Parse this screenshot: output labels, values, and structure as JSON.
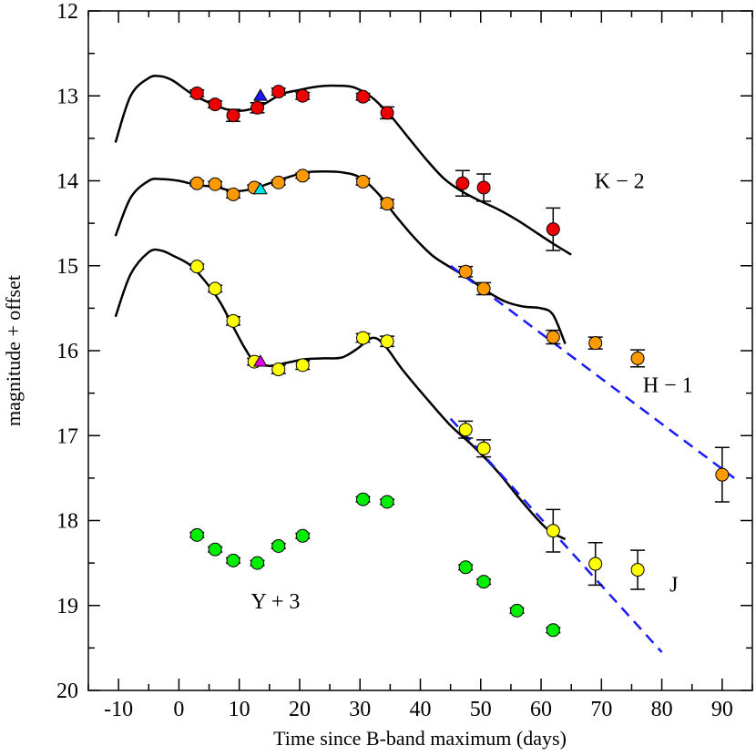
{
  "chart_data": {
    "type": "scatter",
    "xlabel": "Time since B-band maximum (days)",
    "ylabel": "magnitude + offset",
    "xlim": [
      -15,
      95
    ],
    "ylim": [
      12,
      20
    ],
    "y_inverted": true,
    "x_ticks": [
      -10,
      0,
      10,
      20,
      30,
      40,
      50,
      60,
      70,
      80,
      90
    ],
    "y_ticks": [
      12,
      13,
      14,
      15,
      16,
      17,
      18,
      19,
      20
    ],
    "band_labels": [
      {
        "text": "K − 2",
        "x": 73,
        "y": 14.0
      },
      {
        "text": "H − 1",
        "x": 81,
        "y": 16.4
      },
      {
        "text": "J",
        "x": 82,
        "y": 18.75
      },
      {
        "text": "Y + 3",
        "x": 16,
        "y": 18.95
      }
    ],
    "series": [
      {
        "name": "K − 2",
        "color": "#ee0000",
        "points": [
          [
            3,
            12.97,
            0.04
          ],
          [
            6,
            13.1,
            0.04
          ],
          [
            9,
            13.23,
            0.07
          ],
          [
            13,
            13.14,
            0.06
          ],
          [
            16.5,
            12.95,
            0.04
          ],
          [
            20.5,
            13.0,
            0.04
          ],
          [
            30.5,
            13.01,
            0.04
          ],
          [
            34.5,
            13.2,
            0.07
          ],
          [
            47,
            14.03,
            0.15
          ],
          [
            50.5,
            14.08,
            0.16
          ],
          [
            62,
            14.57,
            0.25
          ]
        ],
        "triangle": [
          13.5,
          13.0
        ],
        "triangle_color": "#1a1aff"
      },
      {
        "name": "H − 1",
        "color": "#ff9900",
        "points": [
          [
            3,
            14.03,
            0.03
          ],
          [
            6,
            14.04,
            0.03
          ],
          [
            9,
            14.16,
            0.04
          ],
          [
            12.5,
            14.08,
            0.03
          ],
          [
            16.5,
            14.02,
            0.03
          ],
          [
            20.5,
            13.94,
            0.03
          ],
          [
            30.5,
            14.01,
            0.04
          ],
          [
            34.5,
            14.27,
            0.05
          ],
          [
            47.5,
            15.07,
            0.06
          ],
          [
            50.5,
            15.27,
            0.07
          ],
          [
            62,
            15.84,
            0.08
          ],
          [
            69,
            15.91,
            0.07
          ],
          [
            76,
            16.09,
            0.1
          ],
          [
            90,
            17.46,
            0.32
          ]
        ],
        "triangle": [
          13.5,
          14.1
        ],
        "triangle_color": "#00e5e5"
      },
      {
        "name": "J",
        "color": "#ffff00",
        "points": [
          [
            3,
            15.01,
            0.03
          ],
          [
            6,
            15.27,
            0.04
          ],
          [
            9,
            15.65,
            0.05
          ],
          [
            12.5,
            16.13,
            0.04
          ],
          [
            16.5,
            16.22,
            0.05
          ],
          [
            20.5,
            16.17,
            0.05
          ],
          [
            30.5,
            15.85,
            0.05
          ],
          [
            34.5,
            15.89,
            0.06
          ],
          [
            47.5,
            16.93,
            0.1
          ],
          [
            50.5,
            17.15,
            0.1
          ],
          [
            62,
            18.12,
            0.25
          ],
          [
            69,
            18.51,
            0.25
          ],
          [
            76,
            18.58,
            0.23
          ]
        ],
        "triangle": [
          13.5,
          16.13
        ],
        "triangle_color": "#e600e6"
      },
      {
        "name": "Y + 3",
        "color": "#00ee00",
        "points": [
          [
            3,
            18.17,
            0.03
          ],
          [
            6,
            18.34,
            0.03
          ],
          [
            9,
            18.47,
            0.03
          ],
          [
            13,
            18.5,
            0.03
          ],
          [
            16.5,
            18.3,
            0.03
          ],
          [
            20.5,
            18.18,
            0.03
          ],
          [
            30.5,
            17.75,
            0.03
          ],
          [
            34.5,
            17.78,
            0.03
          ],
          [
            47.5,
            18.55,
            0.03
          ],
          [
            50.5,
            18.72,
            0.03
          ],
          [
            56,
            19.06,
            0.03
          ],
          [
            62,
            19.29,
            0.03
          ]
        ]
      }
    ],
    "curves": [
      {
        "name": "K − 2 fit",
        "points": [
          [
            -10.5,
            13.55
          ],
          [
            -8,
            13.0
          ],
          [
            -5,
            12.79
          ],
          [
            -3,
            12.77
          ],
          [
            -1,
            12.82
          ],
          [
            2,
            12.97
          ],
          [
            5,
            13.08
          ],
          [
            8,
            13.16
          ],
          [
            11,
            13.17
          ],
          [
            14,
            13.1
          ],
          [
            17,
            12.98
          ],
          [
            20,
            12.93
          ],
          [
            23,
            12.89
          ],
          [
            26,
            12.88
          ],
          [
            29,
            12.9
          ],
          [
            32,
            13.02
          ],
          [
            35,
            13.23
          ],
          [
            38,
            13.49
          ],
          [
            41,
            13.75
          ],
          [
            44,
            13.98
          ],
          [
            47,
            14.13
          ],
          [
            50,
            14.24
          ],
          [
            53,
            14.34
          ],
          [
            56,
            14.46
          ],
          [
            59,
            14.6
          ],
          [
            62,
            14.74
          ],
          [
            65,
            14.87
          ]
        ]
      },
      {
        "name": "H − 1 fit",
        "points": [
          [
            -10.5,
            14.65
          ],
          [
            -8,
            14.2
          ],
          [
            -5,
            14.0
          ],
          [
            -3,
            13.98
          ],
          [
            0,
            14.0
          ],
          [
            3,
            14.05
          ],
          [
            6,
            14.07
          ],
          [
            9,
            14.12
          ],
          [
            12,
            14.1
          ],
          [
            15,
            14.03
          ],
          [
            18,
            13.96
          ],
          [
            21,
            13.9
          ],
          [
            24,
            13.89
          ],
          [
            27,
            13.9
          ],
          [
            30,
            13.96
          ],
          [
            33,
            14.15
          ],
          [
            36,
            14.42
          ],
          [
            39,
            14.67
          ],
          [
            42,
            14.88
          ],
          [
            45,
            15.02
          ],
          [
            48,
            15.15
          ],
          [
            51,
            15.3
          ],
          [
            54,
            15.42
          ],
          [
            57,
            15.48
          ],
          [
            60,
            15.5
          ],
          [
            62,
            15.58
          ],
          [
            64,
            15.92
          ]
        ]
      },
      {
        "name": "J fit",
        "points": [
          [
            -10.5,
            15.6
          ],
          [
            -8,
            15.1
          ],
          [
            -5,
            14.84
          ],
          [
            -3,
            14.82
          ],
          [
            -1,
            14.88
          ],
          [
            2,
            15.0
          ],
          [
            5,
            15.24
          ],
          [
            7,
            15.45
          ],
          [
            9,
            15.72
          ],
          [
            11,
            15.98
          ],
          [
            12.5,
            16.12
          ],
          [
            15,
            16.18
          ],
          [
            18,
            16.14
          ],
          [
            21,
            16.1
          ],
          [
            24,
            16.09
          ],
          [
            27,
            16.08
          ],
          [
            29.5,
            15.98
          ],
          [
            32,
            15.85
          ],
          [
            34,
            15.93
          ],
          [
            37,
            16.22
          ],
          [
            41,
            16.56
          ],
          [
            45,
            16.88
          ],
          [
            49,
            17.14
          ],
          [
            53,
            17.44
          ],
          [
            57,
            17.79
          ],
          [
            61,
            18.1
          ],
          [
            64,
            18.22
          ]
        ]
      }
    ],
    "dashed_lines": [
      {
        "color": "#1a1aff",
        "from": [
          45,
          15.0
        ],
        "to": [
          92,
          17.5
        ]
      },
      {
        "color": "#1a1aff",
        "from": [
          45,
          16.8
        ],
        "to": [
          80,
          19.55
        ]
      }
    ]
  }
}
